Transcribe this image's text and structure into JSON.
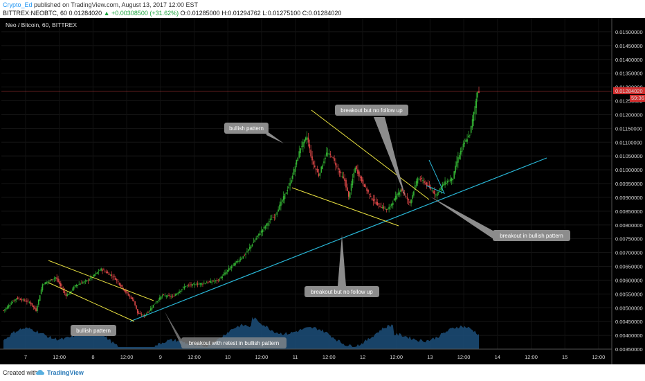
{
  "header": {
    "author": "Crypto_Ed",
    "published_text": "published on TradingView.com, August 13, 2017 12:00 EST",
    "ticker_prefix": "BITTREX:NEOBTC, 60",
    "last_price": "0.01284020",
    "change": "▲ +0.00308500 (+31.62%)",
    "ohlc": "O:0.01285000 H:0.01294762 L:0.01275100 C:0.01284020"
  },
  "chart_title": "Neo / Bitcoin, 60, BITTREX",
  "price_badge": {
    "value": "0.01284020",
    "timer": "59:36",
    "color": "#d32f2f"
  },
  "annotations": [
    "bullish pattern",
    "bullish pattern",
    "breakout but no follow up",
    "breakout but no follow up",
    "breakout in bullish pattern",
    "breakout with retest in bullish pattern"
  ],
  "colors": {
    "up": "#33b233",
    "down": "#e04848",
    "trendline": "#29b6d6",
    "channel": "#e8e040",
    "volume": "#1c4f7a",
    "callout": "#8c8c8c"
  },
  "chart_data": {
    "type": "candlestick",
    "ylim": [
      0.0035,
      0.0155
    ],
    "y_ticks": [
      "0.01500000",
      "0.01450000",
      "0.01400000",
      "0.01350000",
      "0.01300000",
      "0.01250000",
      "0.01200000",
      "0.01150000",
      "0.01100000",
      "0.01050000",
      "0.01000000",
      "0.00950000",
      "0.00900000",
      "0.00850000",
      "0.00800000",
      "0.00750000",
      "0.00700000",
      "0.00650000",
      "0.00600000",
      "0.00550000",
      "0.00500000",
      "0.00450000",
      "0.00400000",
      "0.00350000"
    ],
    "x_ticks": [
      "7",
      "12:00",
      "8",
      "12:00",
      "9",
      "12:00",
      "10",
      "12:00",
      "11",
      "12:00",
      "12",
      "12:00",
      "13",
      "12:00",
      "14",
      "12:00",
      "15",
      "12:00"
    ],
    "last_price": 0.0128402
  },
  "footer": {
    "created": "Created with",
    "brand": "TradingView"
  }
}
